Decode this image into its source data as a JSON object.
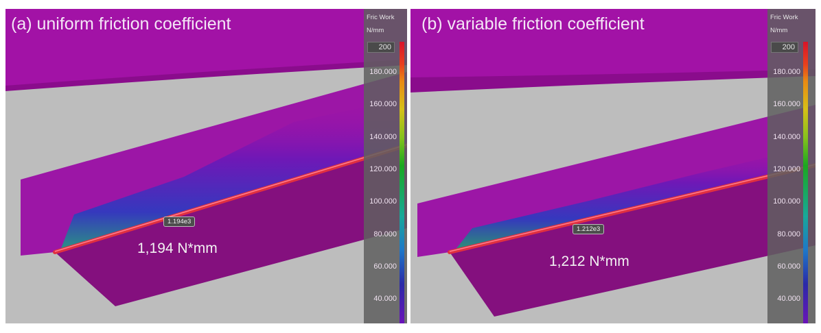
{
  "panels": [
    {
      "title": "(a) uniform friction coefficient",
      "probe_label": "1.194e3",
      "result_text": "1,194 N*mm",
      "legend": {
        "title": "Fric Work",
        "unit": "N/mm",
        "max_value": "200",
        "ticks": [
          "180.000",
          "160.000",
          "140.000",
          "120.000",
          "100.000",
          "80.000",
          "60.000",
          "40.000"
        ]
      }
    },
    {
      "title": "(b) variable friction coefficient",
      "probe_label": "1.212e3",
      "result_text": "1,212 N*mm",
      "legend": {
        "title": "Fric Work",
        "unit": "N/mm",
        "max_value": "200",
        "ticks": [
          "180.000",
          "160.000",
          "140.000",
          "120.000",
          "100.000",
          "80.000",
          "60.000",
          "40.000"
        ]
      }
    }
  ],
  "colors": {
    "magenta": "#a010a8",
    "plate": "#9a14a4",
    "lower_plate": "#84107e",
    "bar": "#e03040",
    "background": "#bdbdbd",
    "legend_bg": "#5f5f5f"
  }
}
